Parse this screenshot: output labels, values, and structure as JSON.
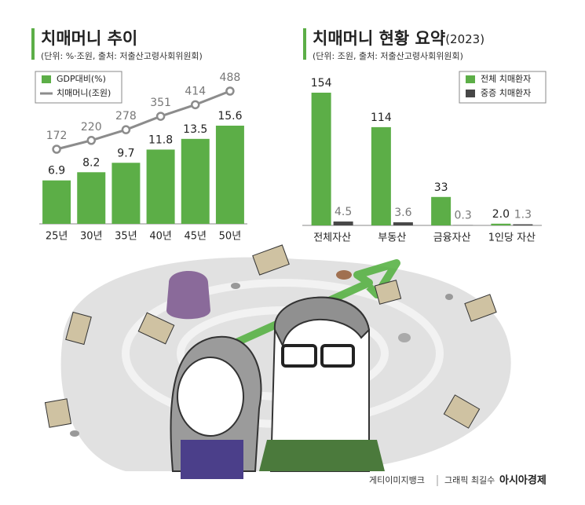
{
  "chart_data": [
    {
      "type": "bar",
      "title": "치매머니 추이",
      "subtitle": "(단위: %·조원, 출처: 저출산고령사회위원회)",
      "categories": [
        "25년",
        "30년",
        "35년",
        "40년",
        "45년",
        "50년"
      ],
      "series": [
        {
          "name": "GDP대비(%)",
          "color": "#5cae47",
          "values": [
            6.9,
            8.2,
            9.7,
            11.8,
            13.5,
            15.6
          ]
        },
        {
          "name": "치매머니(조원)",
          "color": "#8c8c8c",
          "type": "line",
          "axis": "y2",
          "values": [
            172,
            220,
            278,
            351,
            414,
            488
          ]
        }
      ],
      "legend": "upper left"
    },
    {
      "type": "bar",
      "title": "치매머니 현황 요약",
      "title_suffix": "(2023)",
      "subtitle": "(단위: 조원, 출처: 저출산고령사회위원회)",
      "categories": [
        "전체자산",
        "부동산",
        "금융자산",
        "1인당 자산"
      ],
      "series": [
        {
          "name": "전체 치매환자",
          "color": "#5cae47",
          "values": [
            154,
            114,
            33,
            2.0
          ],
          "value_labels": [
            "154",
            "114",
            "33",
            "2.0"
          ]
        },
        {
          "name": "중증 치매환자",
          "color": "#474747",
          "values": [
            4.5,
            3.6,
            0.3,
            1.3
          ]
        }
      ],
      "legend": "upper right"
    }
  ],
  "footer": {
    "source": "게티이미지뱅크",
    "credit": "그래픽 최길수",
    "brand": "아시아경제"
  }
}
